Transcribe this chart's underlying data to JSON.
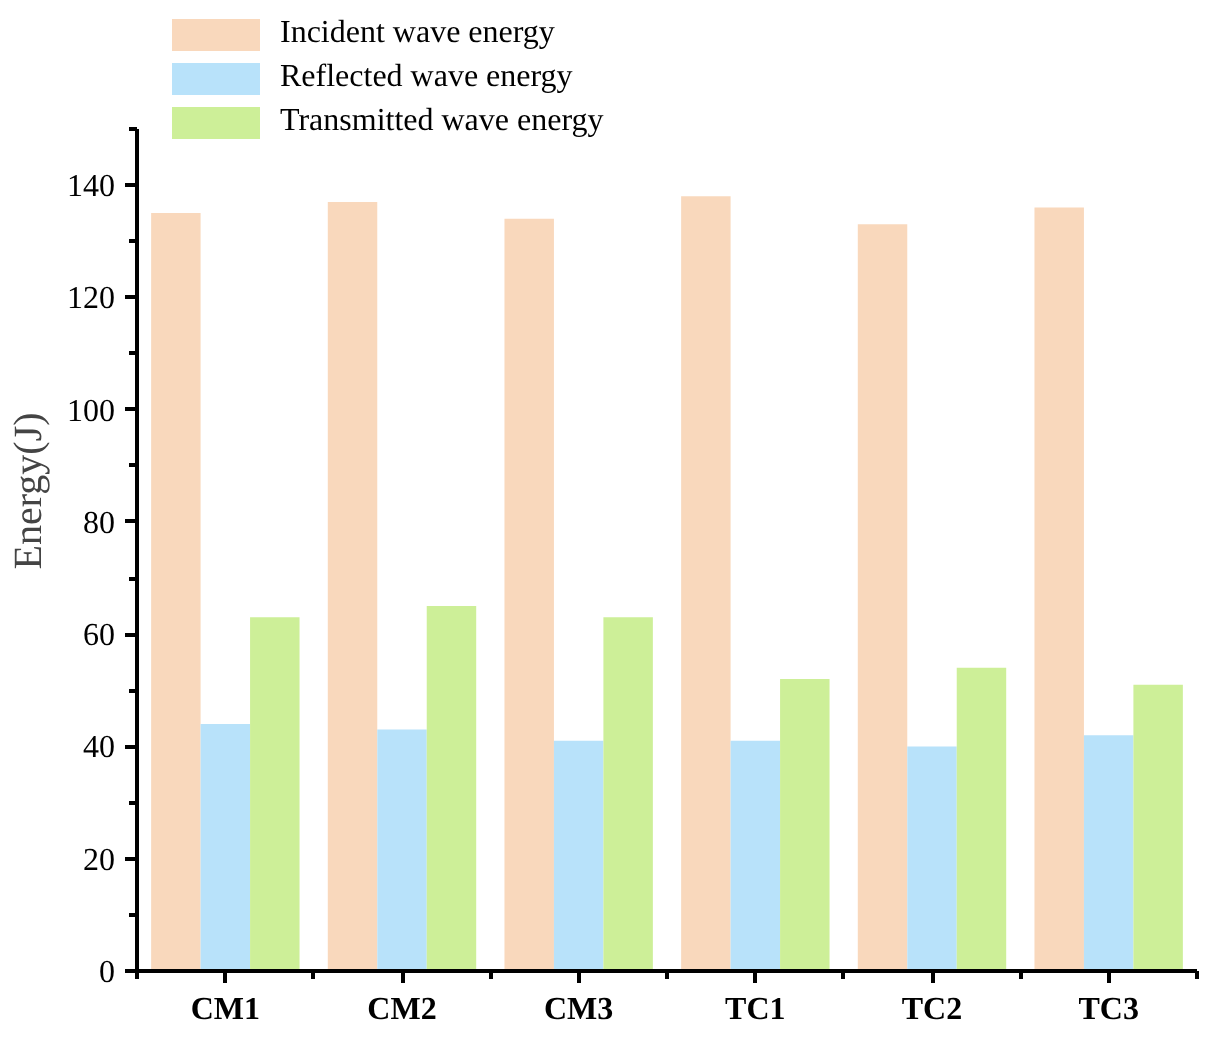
{
  "chart_data": {
    "type": "bar",
    "ylabel": "Energy(J)",
    "categories": [
      "CM1",
      "CM2",
      "CM3",
      "TC1",
      "TC2",
      "TC3"
    ],
    "series": [
      {
        "name": "Incident wave energy",
        "color": "#f9d8bc",
        "values": [
          135,
          137,
          134,
          138,
          133,
          136
        ]
      },
      {
        "name": "Reflected wave energy",
        "color": "#b8e2fa",
        "values": [
          44,
          43,
          41,
          41,
          40,
          42
        ]
      },
      {
        "name": "Transmitted wave energy",
        "color": "#cdef98",
        "values": [
          63,
          65,
          63,
          52,
          54,
          51
        ]
      }
    ],
    "ylim": [
      0,
      150
    ],
    "yticks": [
      0,
      20,
      40,
      60,
      80,
      100,
      120,
      140
    ],
    "grid": false,
    "legend": "top left"
  }
}
